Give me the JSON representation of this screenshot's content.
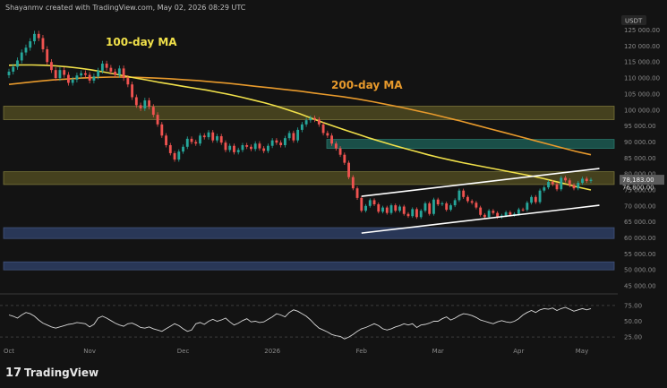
{
  "header": {
    "attribution": "Shayanmv created with TradingView.com, May 02, 2026 08:29 UTC",
    "currency": "USDT"
  },
  "brand": {
    "name": "TradingView"
  },
  "colors": {
    "background": "#131313",
    "candle_up": "#26a69a",
    "candle_down": "#ef5350",
    "ma100": "#f0e04a",
    "ma200": "#e89a2c",
    "zone_yellow": "#4e4a21",
    "zone_teal": "#1c5a52",
    "zone_blue": "#2d3e63",
    "rsi": "#d8d8d8",
    "channel": "#ffffff"
  },
  "chart_data": [
    {
      "type": "candlestick",
      "title": "",
      "currency": "USDT",
      "x_ticks": [
        "Oct",
        "Nov",
        "Dec",
        "2026",
        "Feb",
        "Mar",
        "Apr",
        "May"
      ],
      "y_ticks": [
        45000,
        50000,
        55000,
        60000,
        65000,
        70000,
        75000,
        80000,
        85000,
        90000,
        95000,
        100000,
        105000,
        110000,
        115000,
        120000,
        125000
      ],
      "ylim": [
        45000,
        126000
      ],
      "price_label_last": "78,183.00",
      "price_label_2": "76,800.00",
      "annotations": [
        "100-day MA",
        "200-day MA"
      ],
      "closes": [
        112000,
        113500,
        115500,
        118000,
        119500,
        121500,
        123800,
        122500,
        119000,
        115000,
        112500,
        110000,
        112500,
        111000,
        108500,
        109500,
        110800,
        111500,
        111000,
        109200,
        110500,
        112300,
        114500,
        113200,
        112000,
        111000,
        113000,
        110000,
        108000,
        104000,
        101500,
        100500,
        103000,
        101000,
        98500,
        95500,
        92000,
        89000,
        86500,
        84500,
        87000,
        88500,
        91000,
        90000,
        89500,
        92000,
        91500,
        93000,
        90500,
        91800,
        89800,
        87500,
        88800,
        86800,
        87500,
        89000,
        88500,
        87800,
        89500,
        88000,
        87200,
        88800,
        90500,
        89800,
        89000,
        91200,
        92800,
        90500,
        93800,
        95500,
        96800,
        97500,
        97000,
        95500,
        92800,
        92000,
        89500,
        88000,
        86000,
        83500,
        79000,
        75500,
        72500,
        68500,
        70000,
        71800,
        70500,
        68200,
        69500,
        67800,
        70200,
        68500,
        69800,
        67500,
        66800,
        69000,
        66500,
        68500,
        70800,
        67500,
        72000,
        70500,
        70800,
        68800,
        70200,
        71800,
        74800,
        72800,
        71500,
        71000,
        69500,
        67200,
        66500,
        68500,
        67800,
        66500,
        67000,
        68000,
        67200,
        67500,
        68900,
        68800,
        71000,
        72800,
        71200,
        74800,
        75800,
        77500,
        76800,
        75200,
        78800,
        78000,
        76500,
        75500,
        77200,
        78500,
        77800,
        78183
      ],
      "ma100": [
        114000,
        114100,
        114100,
        114000,
        113800,
        113500,
        113100,
        112600,
        112000,
        111300,
        110600,
        109900,
        109300,
        108600,
        108000,
        107400,
        106800,
        106200,
        105500,
        104800,
        104000,
        103100,
        102200,
        101200,
        100000,
        98800,
        97400,
        96100,
        94800,
        93600,
        92400,
        91200,
        90100,
        89000,
        88000,
        87000,
        86000,
        85100,
        84300,
        83500,
        82800,
        82100,
        81400,
        80700,
        80000,
        79300,
        78500,
        77600,
        76700,
        75800,
        75000
      ],
      "ma200": [
        108000,
        108500,
        109000,
        109400,
        109700,
        110000,
        110200,
        110300,
        110300,
        110200,
        110000,
        109800,
        109500,
        109200,
        108800,
        108400,
        107900,
        107400,
        106900,
        106400,
        105900,
        105300,
        104700,
        104100,
        103400,
        102600,
        101700,
        100800,
        99800,
        98800,
        97700,
        96600,
        95400,
        94200,
        93000,
        91800,
        90600,
        89400,
        88200,
        87000,
        86000
      ],
      "zones": [
        {
          "color": "yellow",
          "from": 97000,
          "to": 101200
        },
        {
          "color": "teal",
          "from": 88000,
          "to": 90800
        },
        {
          "color": "yellow",
          "from": 76700,
          "to": 80700
        },
        {
          "color": "blue",
          "from": 59800,
          "to": 63200
        },
        {
          "color": "blue",
          "from": 50000,
          "to": 52500
        }
      ],
      "channel_upper": [
        [
          83,
          73000
        ],
        [
          139,
          81700
        ]
      ],
      "channel_lower": [
        [
          83,
          61500
        ],
        [
          139,
          70200
        ]
      ]
    },
    {
      "type": "line",
      "title": "",
      "y_ticks": [
        25,
        50,
        75
      ],
      "ylim": [
        18,
        82
      ],
      "rsi": [
        60,
        58,
        55,
        60,
        64,
        62,
        58,
        52,
        47,
        44,
        41,
        39,
        41,
        43,
        45,
        46,
        48,
        47,
        46,
        41,
        45,
        55,
        58,
        55,
        51,
        47,
        44,
        42,
        46,
        47,
        44,
        40,
        39,
        41,
        38,
        36,
        34,
        38,
        42,
        46,
        43,
        38,
        34,
        36,
        46,
        48,
        45,
        50,
        53,
        50,
        52,
        55,
        49,
        44,
        47,
        51,
        54,
        49,
        50,
        48,
        49,
        53,
        57,
        62,
        60,
        57,
        64,
        68,
        66,
        62,
        58,
        52,
        45,
        39,
        36,
        33,
        29,
        27,
        26,
        22,
        25,
        29,
        34,
        38,
        40,
        43,
        46,
        43,
        38,
        36,
        38,
        41,
        43,
        46,
        44,
        46,
        40,
        44,
        45,
        47,
        50,
        50,
        54,
        57,
        52,
        55,
        59,
        62,
        61,
        59,
        56,
        52,
        50,
        48,
        46,
        49,
        51,
        49,
        48,
        50,
        54,
        60,
        64,
        67,
        64,
        68,
        70,
        69,
        71,
        67,
        70,
        72,
        69,
        66,
        68,
        70,
        68,
        70
      ]
    }
  ]
}
